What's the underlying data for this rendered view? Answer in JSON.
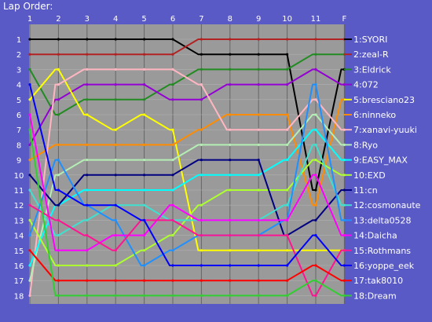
{
  "chart_data": {
    "type": "line",
    "title": "Lap Order:",
    "x": [
      "1",
      "2",
      "3",
      "4",
      "5",
      "6",
      "7",
      "8",
      "9",
      "10",
      "11",
      "F"
    ],
    "y_ticks": [
      "1",
      "2",
      "3",
      "4",
      "5",
      "6",
      "7",
      "8",
      "9",
      "10",
      "11",
      "12",
      "13",
      "14",
      "15",
      "16",
      "17",
      "18"
    ],
    "ylim": [
      1,
      18
    ],
    "y_inverted": true,
    "grid": true,
    "legend": "right",
    "series": [
      {
        "name": "1:SYORI",
        "color": "#000000",
        "values": [
          1,
          1,
          1,
          1,
          1,
          1,
          2,
          2,
          2,
          2,
          11,
          3
        ]
      },
      {
        "name": "2:zeal-R",
        "color": "#b22222",
        "values": [
          2,
          2,
          2,
          2,
          2,
          2,
          1,
          1,
          1,
          1,
          1,
          1
        ]
      },
      {
        "name": "3:Eldrick",
        "color": "#228b22",
        "values": [
          3,
          6,
          5,
          5,
          5,
          4,
          3,
          3,
          3,
          3,
          2,
          2
        ]
      },
      {
        "name": "4:072",
        "color": "#9400d3",
        "values": [
          8,
          5,
          4,
          4,
          4,
          5,
          5,
          4,
          4,
          4,
          3,
          4
        ]
      },
      {
        "name": "5:bresciano23",
        "color": "#ffff00",
        "values": [
          5,
          3,
          6,
          7,
          6,
          7,
          15,
          15,
          15,
          15,
          15,
          15
        ]
      },
      {
        "name": "6:ninneko",
        "color": "#ff8c00",
        "values": [
          9,
          8,
          8,
          8,
          8,
          8,
          7,
          6,
          6,
          6,
          12,
          5
        ]
      },
      {
        "name": "7:xanavi-yuuki",
        "color": "#ffb6c1",
        "values": [
          18,
          4,
          3,
          3,
          3,
          3,
          4,
          7,
          7,
          7,
          5,
          7
        ]
      },
      {
        "name": "8:Ryo",
        "color": "#b4eeb4",
        "values": [
          17,
          10,
          9,
          9,
          9,
          9,
          8,
          8,
          8,
          8,
          6,
          8
        ]
      },
      {
        "name": "9:EASY_MAX",
        "color": "#00ffff",
        "values": [
          16,
          12,
          11,
          11,
          11,
          11,
          10,
          10,
          10,
          9,
          7,
          9
        ]
      },
      {
        "name": "10:EXD",
        "color": "#adff2f",
        "values": [
          13,
          16,
          16,
          16,
          15,
          14,
          12,
          11,
          11,
          11,
          9,
          10
        ]
      },
      {
        "name": "11:cn",
        "color": "#000080",
        "values": [
          10,
          12,
          10,
          10,
          10,
          10,
          9,
          9,
          9,
          14,
          13,
          11
        ]
      },
      {
        "name": "12:cosmonaute",
        "color": "#40e0d0",
        "values": [
          11,
          14,
          13,
          12,
          12,
          13,
          13,
          13,
          13,
          12,
          8,
          12
        ]
      },
      {
        "name": "13:delta0528",
        "color": "#1e90ff",
        "values": [
          14,
          9,
          12,
          13,
          16,
          15,
          14,
          14,
          14,
          13,
          4,
          13
        ]
      },
      {
        "name": "14:Daicha",
        "color": "#ff00ff",
        "values": [
          6,
          15,
          15,
          14,
          14,
          12,
          13,
          13,
          13,
          13,
          10,
          14
        ]
      },
      {
        "name": "15:Rothmans",
        "color": "#ff1493",
        "values": [
          12,
          13,
          14,
          15,
          13,
          13,
          14,
          14,
          14,
          14,
          18,
          15
        ]
      },
      {
        "name": "16:yoppe_eek",
        "color": "#0000ff",
        "values": [
          4,
          11,
          12,
          12,
          13,
          16,
          16,
          16,
          16,
          16,
          14,
          16
        ]
      },
      {
        "name": "17:tak8010",
        "color": "#ff0000",
        "values": [
          15,
          17,
          17,
          17,
          17,
          17,
          17,
          17,
          17,
          17,
          16,
          17
        ]
      },
      {
        "name": "18:Dream",
        "color": "#32cd32",
        "values": [
          7,
          18,
          18,
          18,
          18,
          18,
          18,
          18,
          18,
          18,
          17,
          18
        ]
      }
    ]
  }
}
